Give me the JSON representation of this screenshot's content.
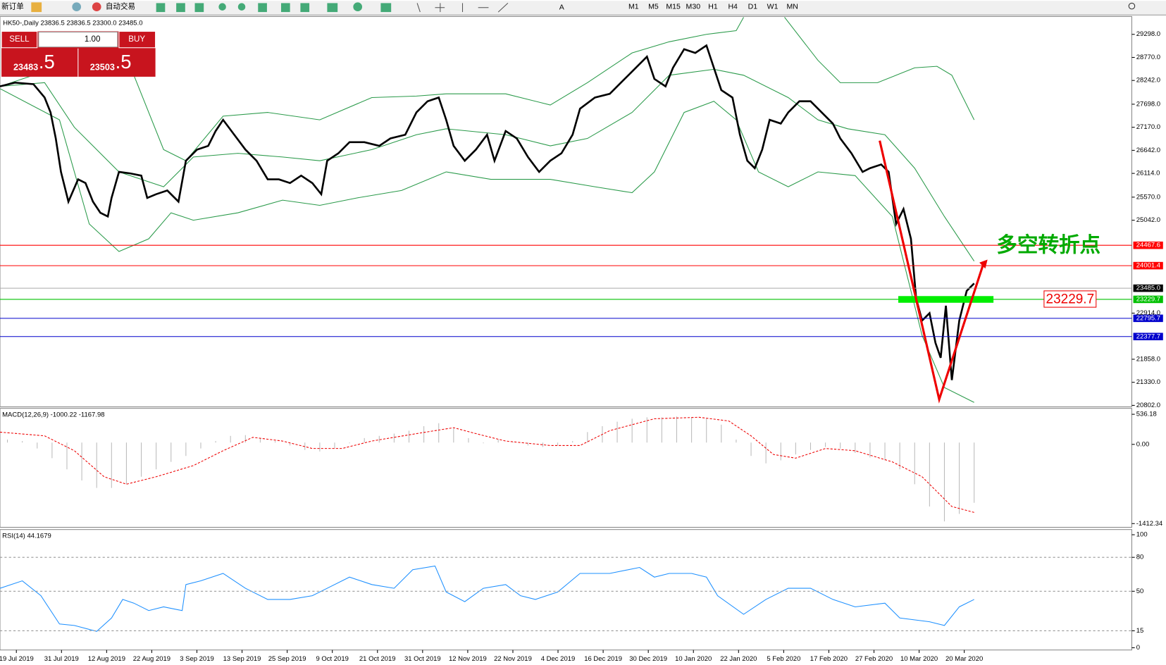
{
  "toolbar": {
    "new_order": "新订单",
    "auto_trade": "自动交易",
    "timeframes": [
      "M1",
      "M5",
      "M15",
      "M30",
      "H1",
      "H4",
      "D1",
      "W1",
      "MN"
    ]
  },
  "header": "HK50-,Daily  23836.5 23836.5 23300.0 23485.0",
  "trade_panel": {
    "sell": "SELL",
    "buy": "BUY",
    "lots": "1.00",
    "sell_price": "23483",
    "sell_frac": ".5",
    "buy_price": "23503",
    "buy_frac": ".5"
  },
  "annotation": {
    "text": "多空转折点",
    "level": "23229.7"
  },
  "chart_data": {
    "type": "candlestick",
    "ylim": [
      20802,
      29298
    ],
    "yticks": [
      {
        "value": 29298,
        "label": "29298.0"
      },
      {
        "value": 28770,
        "label": "28770.0"
      },
      {
        "value": 28242,
        "label": "28242.0"
      },
      {
        "value": 27698,
        "label": "27698.0"
      },
      {
        "value": 27170,
        "label": "27170.0"
      },
      {
        "value": 26642,
        "label": "26642.0"
      },
      {
        "value": 26114,
        "label": "26114.0"
      },
      {
        "value": 25570,
        "label": "25570.0"
      },
      {
        "value": 25042,
        "label": "25042.0"
      },
      {
        "value": 22914,
        "label": "22914.0"
      },
      {
        "value": 21858,
        "label": "21858.0"
      },
      {
        "value": 21330,
        "label": "21330.0"
      },
      {
        "value": 20802,
        "label": "20802.0"
      }
    ],
    "levels": [
      {
        "value": 24467.6,
        "label": "24467.6",
        "color": "#ff0000"
      },
      {
        "value": 24001.4,
        "label": "24001.4",
        "color": "#ff0000"
      },
      {
        "value": 23485,
        "label": "23485.0",
        "color": "#000000"
      },
      {
        "value": 23229.7,
        "label": "23229.7",
        "color": "#00c000"
      },
      {
        "value": 22795.7,
        "label": "22795.7",
        "color": "#0000cc"
      },
      {
        "value": 22377.7,
        "label": "22377.7",
        "color": "#0000cc"
      }
    ],
    "categories": [
      "19 Jul 2019",
      "31 Jul 2019",
      "12 Aug 2019",
      "22 Aug 2019",
      "3 Sep 2019",
      "13 Sep 2019",
      "25 Sep 2019",
      "9 Oct 2019",
      "21 Oct 2019",
      "31 Oct 2019",
      "12 Nov 2019",
      "22 Nov 2019",
      "4 Dec 2019",
      "16 Dec 2019",
      "30 Dec 2019",
      "10 Jan 2020",
      "22 Jan 2020",
      "5 Feb 2020",
      "17 Feb 2020",
      "27 Feb 2020",
      "10 Mar 2020",
      "20 Mar 2020"
    ]
  },
  "macd": {
    "label": "MACD(12,26,9) -1000.22 -1167.98",
    "ylim": [
      -1412.34,
      536.18
    ],
    "yticks": [
      536.18,
      {
        "value": 0,
        "label": "0.00"
      },
      -1412.34
    ]
  },
  "rsi": {
    "label": "RSI(14) 44.1679",
    "ylim": [
      0,
      100
    ],
    "yticks": [
      100,
      80,
      50,
      15,
      0
    ]
  }
}
